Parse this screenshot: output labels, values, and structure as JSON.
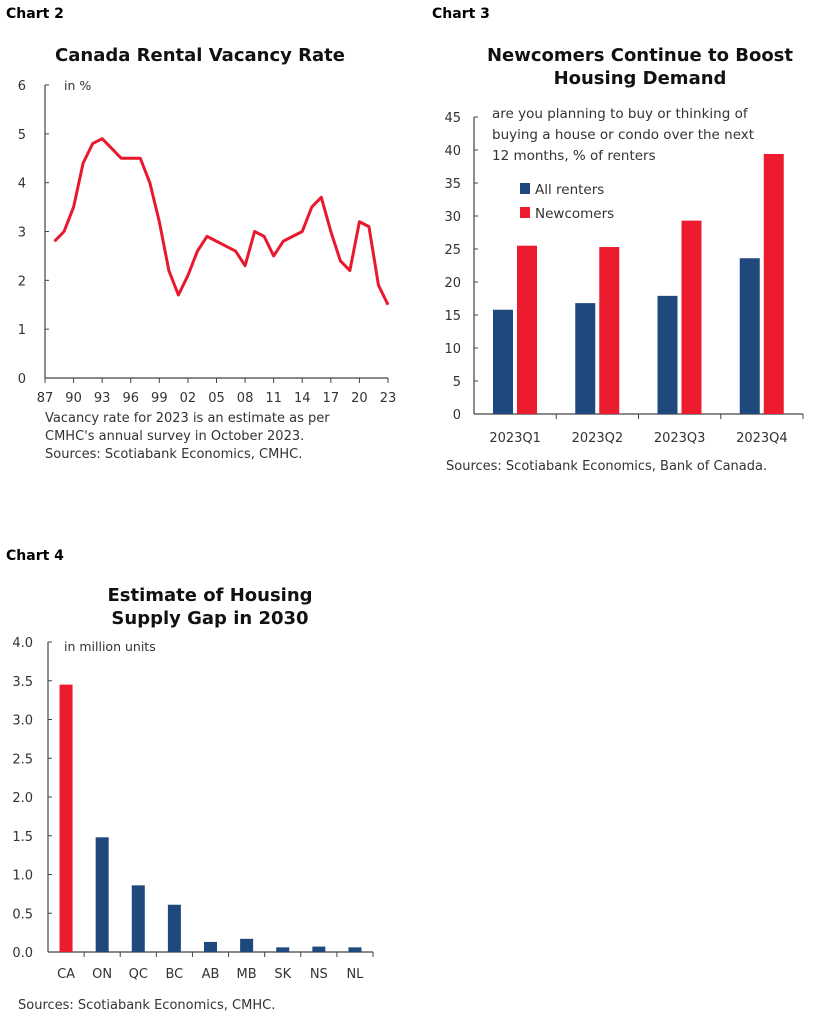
{
  "chart_data": [
    {
      "label": "Chart 2",
      "type": "line",
      "title": "Canada Rental Vacancy Rate",
      "unit_note": "in %",
      "x": [
        1988,
        1989,
        1990,
        1991,
        1992,
        1993,
        1994,
        1995,
        1996,
        1997,
        1998,
        1999,
        2000,
        2001,
        2002,
        2003,
        2004,
        2005,
        2006,
        2007,
        2008,
        2009,
        2010,
        2011,
        2012,
        2013,
        2014,
        2015,
        2016,
        2017,
        2018,
        2019,
        2020,
        2021,
        2022,
        2023
      ],
      "series": [
        {
          "values": [
            2.8,
            3.0,
            3.5,
            4.4,
            4.8,
            4.9,
            4.7,
            4.5,
            4.5,
            4.5,
            4.0,
            3.2,
            2.2,
            1.7,
            2.1,
            2.6,
            2.9,
            2.8,
            2.7,
            2.6,
            2.3,
            3.0,
            2.9,
            2.5,
            2.8,
            2.9,
            3.0,
            3.5,
            3.7,
            3.0,
            2.4,
            2.2,
            3.2,
            3.1,
            1.9,
            1.5
          ],
          "color": "#e8192c"
        }
      ],
      "xlim": [
        1987,
        2023
      ],
      "ylim": [
        0,
        6
      ],
      "x_tick_labels": [
        "87",
        "90",
        "93",
        "96",
        "99",
        "02",
        "05",
        "08",
        "11",
        "14",
        "17",
        "20",
        "23"
      ],
      "y_tick_labels": [
        "0",
        "1",
        "2",
        "3",
        "4",
        "5",
        "6"
      ],
      "footnotes": [
        "Vacancy rate for 2023 is an estimate as per",
        "CMHC's annual survey in October 2023.",
        "Sources: Scotiabank Economics, CMHC."
      ],
      "grid": false
    },
    {
      "label": "Chart 3",
      "type": "bar",
      "title_lines": [
        "Newcomers Continue to Boost",
        "Housing Demand"
      ],
      "subtitle_lines": [
        "are you planning to buy or thinking of",
        "buying a house or condo over the next",
        "12 months, % of renters"
      ],
      "categories": [
        "2023Q1",
        "2023Q2",
        "2023Q3",
        "2023Q4"
      ],
      "series": [
        {
          "name": "All renters",
          "values": [
            15.8,
            16.8,
            17.9,
            23.6
          ],
          "color": "#1f497d"
        },
        {
          "name": "Newcomers",
          "values": [
            25.5,
            25.3,
            29.3,
            39.4
          ],
          "color": "#ec1c2e"
        }
      ],
      "ylim": [
        0,
        45
      ],
      "y_tick_labels": [
        "0",
        "5",
        "10",
        "15",
        "20",
        "25",
        "30",
        "35",
        "40",
        "45"
      ],
      "legend": "top-left",
      "footnotes": [
        "Sources: Scotiabank Economics, Bank of Canada."
      ],
      "grid": false
    },
    {
      "label": "Chart 4",
      "type": "bar",
      "title_lines": [
        "Estimate of Housing",
        "Supply Gap in 2030"
      ],
      "unit_note": "in million units",
      "categories": [
        "CA",
        "ON",
        "QC",
        "BC",
        "AB",
        "MB",
        "SK",
        "NS",
        "NL"
      ],
      "values": [
        3.45,
        1.48,
        0.86,
        0.61,
        0.13,
        0.17,
        0.06,
        0.07,
        0.06
      ],
      "colors": [
        "#ec1c2e",
        "#1f497d",
        "#1f497d",
        "#1f497d",
        "#1f497d",
        "#1f497d",
        "#1f497d",
        "#1f497d",
        "#1f497d"
      ],
      "ylim": [
        0,
        4
      ],
      "y_tick_labels": [
        "0.0",
        "0.5",
        "1.0",
        "1.5",
        "2.0",
        "2.5",
        "3.0",
        "3.5",
        "4.0"
      ],
      "footnotes": [
        "Sources: Scotiabank Economics, CMHC."
      ],
      "grid": false
    }
  ]
}
